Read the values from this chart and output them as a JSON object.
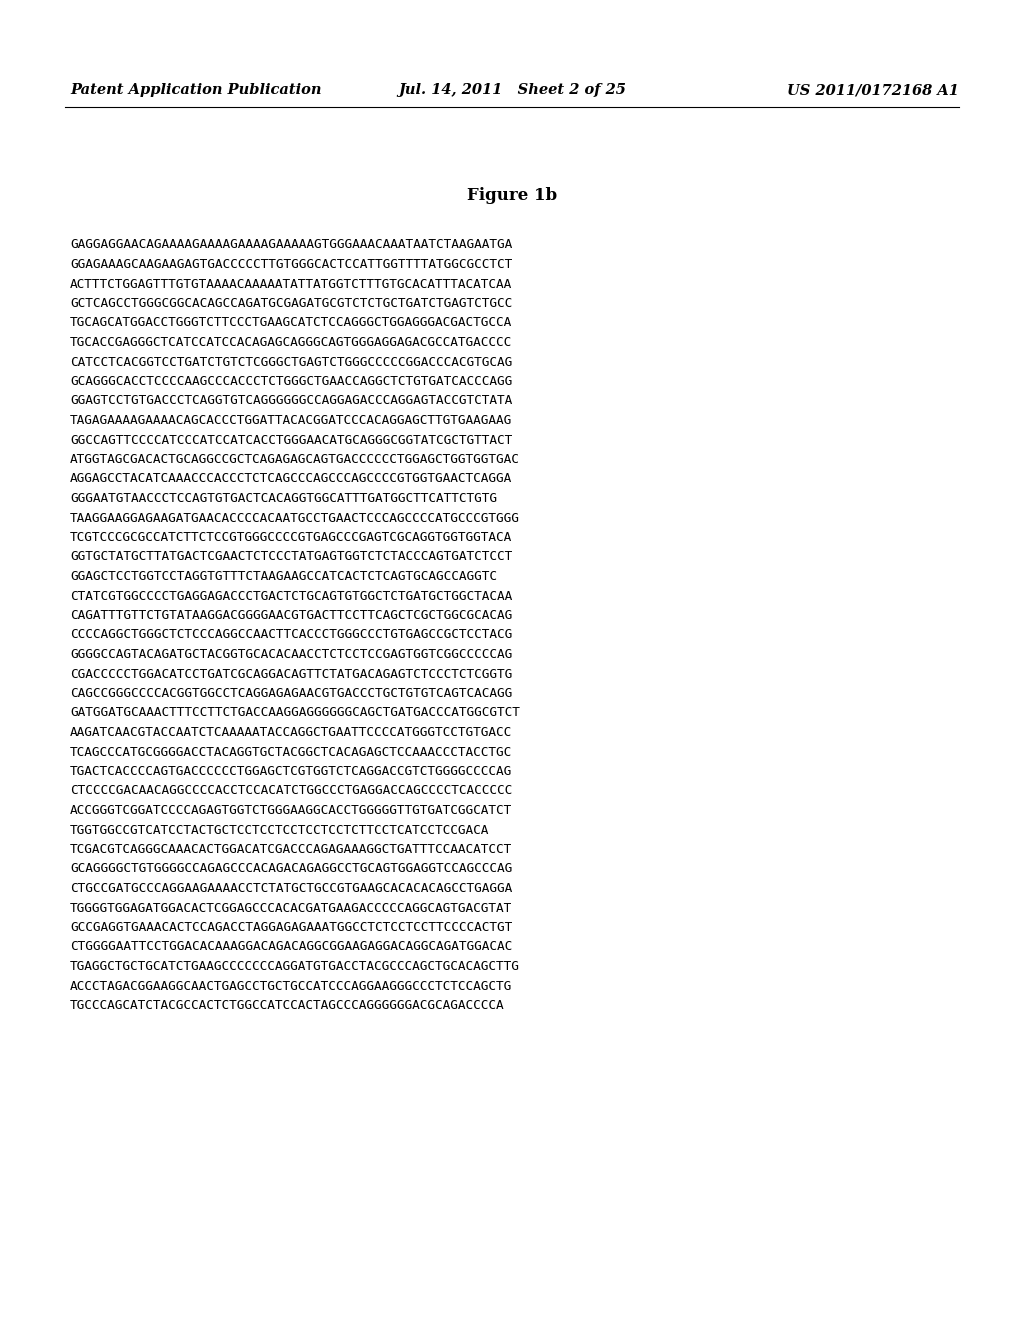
{
  "header_left": "Patent Application Publication",
  "header_mid": "Jul. 14, 2011   Sheet 2 of 25",
  "header_right": "US 2011/0172168 A1",
  "figure_title": "Figure 1b",
  "sequence_lines": [
    "GAGGAGGAACAGAAAAGAAAAGAAAAGAAAAAGTGGGAAACAAATAATCTAAGAATGA",
    "GGAGAAAGCAAGAAGAGTGACCCCCTTGTGGGCACTCCATTGGTTTTATGGCGCCTCT",
    "ACTTTCTGGAGTTTGTGTAAAACAAAAATATTATGGTCTTTGTGCACATTTACATCAA",
    "GCTCAGCCTGGGCGGCACAGCCAGATGCGAGATGCGTCTCTGCTGATCTGAGTCTGCC",
    "TGCAGCATGGACCTGGGTCTTCCCTGAAGCATCTCCAGGGCTGGAGGGACGACTGCCA",
    "TGCACCGAGGGCTCATCCATCCACAGAGCAGGGCAGTGGGAGGAGACGCCATGACCCC",
    "CATCCTCACGGTCCTGATCTGTCTCGGGCTGAGTCTGGGCCCCCGGACCCACGTGCAG",
    "GCAGGGCACCTCCCCAAGCCCACCCTCTGGGCTGAACCAGGCTCTGTGATCACCCAGG",
    "GGAGTCCTGTGACCCTCAGGTGTCAGGGGGGCCAGGAGACCCAGGAGTACCGTCTATA",
    "TAGAGAAAAGAAAACAGCACCCTGGATTACACGGATCCCACAGGAGCTTGTGAAGAAG",
    "GGCCAGTTCCCCATCCCATCCATCACCTGGGAACATGCAGGGCGGTATCGCTGTTACT",
    "ATGGTAGCGACACTGCAGGCCGCTCAGAGAGCAGTGACCCCCCTGGAGCTGGTGGTGAC",
    "AGGAGCCTACATCAAACCCACCCTCTCAGCCCAGCCCAGCCCCGTGGTGAACTCAGGA",
    "GGGAATGTAACCCTCCAGTGTGACTCACAGGTGGCATTTGATGGCTTCATTCTGTG",
    "TAAGGAAGGAGAAGATGAACACCCCACAATGCCTGAACTCCCAGCCCCATGCCCGTGGG",
    "TCGTCCCGCGCCATCTTCTCCGTGGGCCCCGTGAGCCCGAGTCGCAGGTGGTGGTACA",
    "GGTGCTATGCTTATGACTCGAACTCTCCCTATGAGTGGTCTCTACCCAGTGATCTCCT",
    "GGAGCTCCTGGTCCTAGGTGTTTCTAAGAAGCCATCACTCTCAGTGCAGCCAGGTC",
    "CTATCGTGGCCCCTGAGGAGACCCTGACTCTGCAGTGTGGCTCTGATGCTGGCTACAA",
    "CAGATTTGTTCTGTATAAGGACGGGGAACGTGACTTCCTTCAGCTCGCTGGCGCACAG",
    "CCCCAGGCTGGGCTCTCCCAGGCCAACTTCACCCTGGGCCCTGTGAGCCGCTCCTACG",
    "GGGGCCAGTACAGATGCTACGGTGCACACAACCTCTCCTCCGAGTGGTCGGCCCCCAG",
    "CGACCCCCTGGACATCCTGATCGCAGGACAGTTCTATGACAGAGTCTCCCTCTCGGTG",
    "CAGCCGGGCCCCACGGTGGCCTCAGGAGAGAACGTGACCCTGCTGTGTCAGTCACAGG",
    "GATGGATGCAAACTTTCCTTCTGACCAAGGAGGGGGGCAGCTGATGACCCATGGCGTCT",
    "AAGATCAACGTACCAATCTCAAAAATACCAGGCTGAATTCCCCATGGGTCCTGTGACC",
    "TCAGCCCATGCGGGGACCTACAGGTGCTACGGCTCACAGAGCTCCAAACCCTACCTGC",
    "TGACTCACCCCAGTGACCCCCCTGGAGCTCGTGGTCTCAGGACCGTCTGGGGCCCCAG",
    "CTCCCCGACAACAGGCCCCACCTCCACATCTGGCCCTGAGGACCAGCCCCTCACCCCC",
    "ACCGGGTCGGATCCCCAGAGTGGTCTGGGAAGGCACCTGGGGGTTGTGATCGGCATCT",
    "TGGTGGCCGTCATCCTACTGCTCCTCCTCCTCCTCCTCTTCCTCATCCTCCGACA",
    "TCGACGTCAGGGCAAACACTGGACATCGACCCAGAGAAAGGCTGATTTCCAACATCCT",
    "GCAGGGGCTGTGGGGCCAGAGCCCACAGACAGAGGCCTGCAGTGGAGGTCCAGCCCAG",
    "CTGCCGATGCCCAGGAAGAAAACCTCTATGCTGCCGTGAAGCACACACAGCCTGAGGA",
    "TGGGGTGGAGATGGACACTCGGAGCCCACACGATGAAGACCCCCAGGCAGTGACGTAT",
    "GCCGAGGTGAAACACTCCAGACCTAGGAGAGAAATGGCCTCTCCTCCTTCCCCACTGT",
    "CTGGGGAATTCCTGGACACAAAGGACAGACAGGCGGAAGAGGACAGGCAGATGGACAC",
    "TGAGGCTGCTGCATCTGAAGCCCCCCCAGGATGTGACCTACGCCCAGCTGCACAGCTTG",
    "ACCCTAGACGGAAGGCAACTGAGCCTGCTGCCATCCCAGGAAGGGCCCTCTCCAGCTG",
    "TGCCCAGCATCTACGCCACTCTGGCCATCCACTAGCCCAGGGGGGACGCAGACCCCA"
  ],
  "background_color": "#ffffff",
  "text_color": "#000000",
  "header_fontsize": 10.5,
  "title_fontsize": 12,
  "seq_fontsize": 9.2,
  "page_width": 10.24,
  "page_height": 13.2
}
